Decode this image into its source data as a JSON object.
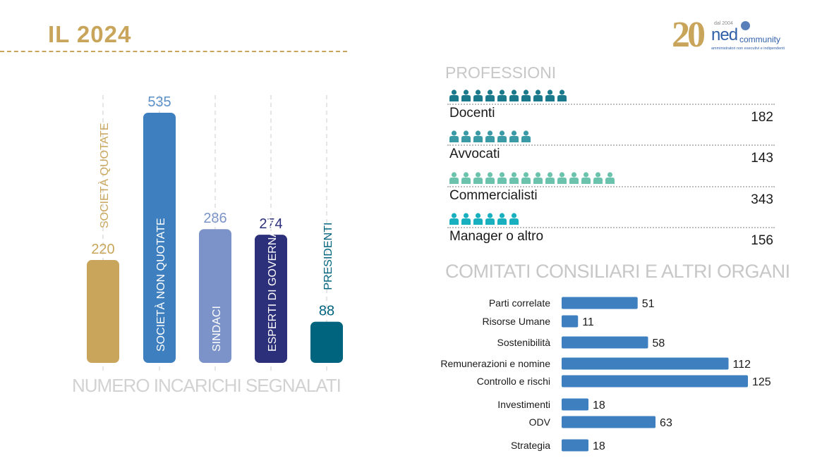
{
  "header": {
    "title": "IL 2024"
  },
  "logo": {
    "number": "20",
    "since": "dal 2004",
    "brand": "ned",
    "brand_suffix": "community",
    "tagline": "amministratori non esecutivi e indipendenti"
  },
  "colors": {
    "gold": "#c8a55a",
    "blue": "#3d7fbf",
    "lavender": "#7b93c8",
    "navy": "#2c2f7a",
    "teal": "#00647f",
    "icon_teal_dark": "#1a7a8c",
    "icon_teal": "#3a9aa6",
    "icon_mint": "#6cc3ad",
    "icon_cyan": "#18b0bf",
    "comm_bar": "#3d7fbf"
  },
  "chart_data": [
    {
      "type": "bar",
      "title": "",
      "footer": "NUMERO INCARICHI SEGNALATI",
      "categories": [
        "SOCIETÀ QUOTATE",
        "SOCIETÀ  NON QUOTATE",
        "SINDACI",
        "ESPERTI DI GOVERNANCE",
        "PRESIDENTI"
      ],
      "values": [
        220,
        535,
        286,
        274,
        88
      ],
      "colors": [
        "#c8a55a",
        "#3d7fbf",
        "#7b93c8",
        "#2c2f7a",
        "#00647f"
      ],
      "label_colors": [
        "#c8a55a",
        "#5a8fc8",
        "#7b93c8",
        "#2c2f7a",
        "#00647f"
      ],
      "ylim": [
        0,
        535
      ],
      "grid": "vertical dashed lines per category"
    },
    {
      "type": "bar",
      "orientation": "horizontal",
      "title": "COMITATI CONSILIARI E ALTRI ORGANI",
      "categories": [
        "Parti correlate",
        "Risorse Umane",
        "Sostenibilità",
        "Remunerazioni e nomine",
        "Controllo e rischi",
        "Investimenti",
        "ODV",
        "Strategia"
      ],
      "values": [
        51,
        11,
        58,
        112,
        125,
        18,
        63,
        18
      ],
      "xlim": [
        0,
        125
      ]
    }
  ],
  "professions": {
    "title": "PROFESSIONI",
    "items": [
      {
        "label": "Docenti",
        "value": "182",
        "icon_count": 10,
        "icon_color": "#1a7a8c"
      },
      {
        "label": "Avvocati",
        "value": "143",
        "icon_count": 7,
        "icon_color": "#3a9aa6"
      },
      {
        "label": "Commercialisti",
        "value": "343",
        "icon_count": 14,
        "icon_color": "#6cc3ad"
      },
      {
        "label": "Manager  o altro",
        "value": "156",
        "icon_count": 6,
        "icon_color": "#18b0bf"
      }
    ]
  }
}
